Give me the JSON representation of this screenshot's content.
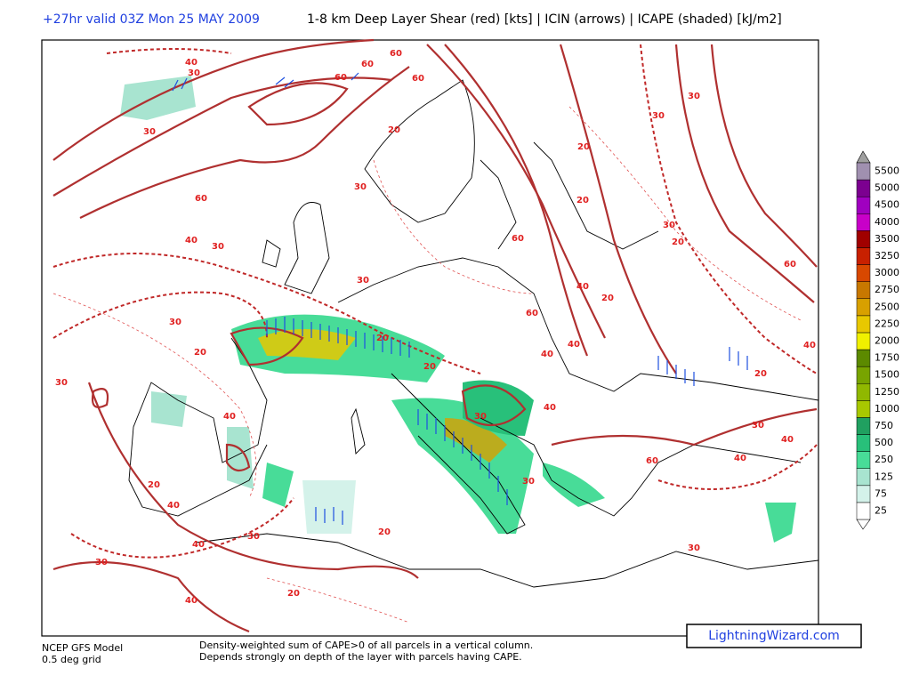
{
  "header": {
    "valid_time": "+27hr valid 03Z Mon 25 MAY 2009",
    "title": "1-8 km Deep Layer Shear (red) [kts] | ICIN (arrows) | ICAPE (shaded) [kJ/m2]"
  },
  "colorbar": {
    "values": [
      25,
      75,
      125,
      250,
      500,
      750,
      1000,
      1250,
      1500,
      1750,
      2000,
      2250,
      2500,
      2750,
      3000,
      3250,
      3500,
      4000,
      4500,
      5000,
      5500
    ],
    "colors": [
      "#ffffff",
      "#d4f2ea",
      "#a8e4d0",
      "#48dc98",
      "#28c07a",
      "#20a060",
      "#a8c800",
      "#90b800",
      "#78a400",
      "#5c8a00",
      "#f0f000",
      "#e8c800",
      "#d8a000",
      "#c87800",
      "#d84800",
      "#c82000",
      "#a00000",
      "#c800c8",
      "#a000c0",
      "#7c0090",
      "#a090b0"
    ]
  },
  "contour_labels": [
    40,
    30,
    60,
    60,
    60,
    60,
    30,
    60,
    40,
    30,
    30,
    20,
    30,
    30,
    20,
    40,
    20,
    20,
    30,
    20,
    40,
    40,
    30,
    30,
    40,
    20,
    20,
    60,
    60,
    40,
    40,
    40,
    30,
    60,
    40,
    30,
    30,
    40,
    30,
    40,
    40,
    60,
    20,
    30,
    30,
    30,
    20,
    20,
    20,
    20
  ],
  "footer": {
    "model": "NCEP GFS Model",
    "grid": "0.5 deg grid",
    "description": [
      "Density-weighted sum of CAPE>0 of all parcels in a vertical column.",
      "Depends strongly on depth of the layer with parcels having CAPE."
    ],
    "brand": "LightningWizard.com"
  }
}
